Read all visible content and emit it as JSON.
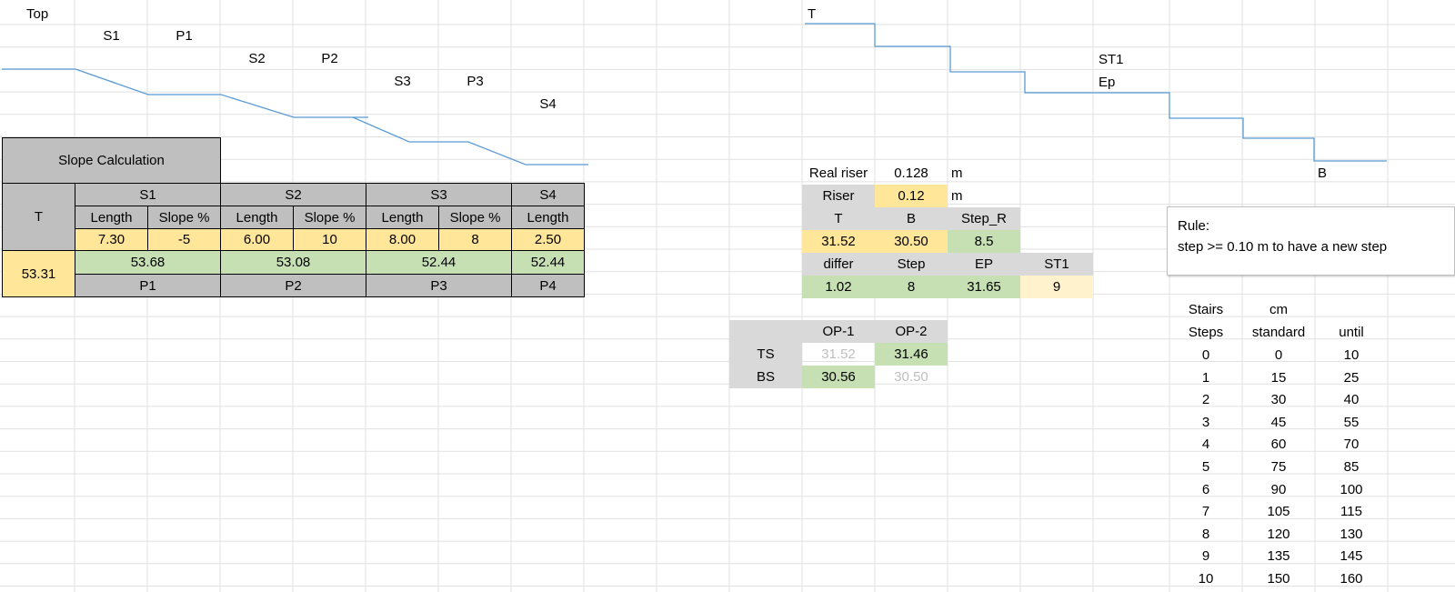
{
  "colors": {
    "gridline": "#e1e1e1",
    "header_gray": "#bfbfbf",
    "light_gray": "#d9d9d9",
    "input_yellow": "#ffe699",
    "light_yellow": "#fff2cc",
    "result_green": "#c6e0b4",
    "sketch_blue": "#5b9bd5"
  },
  "slope_sketch": {
    "top": "Top",
    "s1": "S1",
    "p1": "P1",
    "s2": "S2",
    "p2": "P2",
    "s3": "S3",
    "p3": "P3",
    "s4": "S4"
  },
  "slope_table": {
    "title": "Slope Calculation",
    "t_header": "T",
    "segments": [
      {
        "name": "S1",
        "length_label": "Length",
        "slope_label": "Slope %",
        "length": "7.30",
        "slope": "-5",
        "result": "53.68",
        "point": "P1"
      },
      {
        "name": "S2",
        "length_label": "Length",
        "slope_label": "Slope %",
        "length": "6.00",
        "slope": "10",
        "result": "53.08",
        "point": "P2"
      },
      {
        "name": "S3",
        "length_label": "Length",
        "slope_label": "Slope %",
        "length": "8.00",
        "slope": "8",
        "result": "52.44",
        "point": "P3"
      },
      {
        "name": "S4",
        "length_label": "Length",
        "length": "2.50",
        "result": "52.44",
        "point": "P4"
      }
    ],
    "t_value": "53.31"
  },
  "stair_sketch": {
    "t": "T",
    "st1": "ST1",
    "ep": "Ep",
    "b": "B"
  },
  "stair_calc": {
    "real_riser_label": "Real riser",
    "real_riser_value": "0.128",
    "real_riser_unit": "m",
    "riser_label": "Riser",
    "riser_value": "0.12",
    "riser_unit": "m",
    "h_t": "T",
    "h_b": "B",
    "h_step_r": "Step_R",
    "v_t": "31.52",
    "v_b": "30.50",
    "v_step_r": "8.5",
    "h_differ": "differ",
    "h_step": "Step",
    "h_ep": "EP",
    "h_st1": "ST1",
    "v_differ": "1.02",
    "v_step": "8",
    "v_ep": "31.65",
    "v_st1": "9"
  },
  "options": {
    "op1": "OP-1",
    "op2": "OP-2",
    "ts": "TS",
    "bs": "BS",
    "ts_op1": "31.52",
    "ts_op2": "31.46",
    "bs_op1": "30.56",
    "bs_op2": "30.50"
  },
  "rule": {
    "line1": "Rule:",
    "line2": "step >= 0.10 m to have a new step"
  },
  "stairs_table": {
    "h1": "Stairs",
    "h2": "cm",
    "c1": "Steps",
    "c2": "standard",
    "c3": "until",
    "rows": [
      [
        "0",
        "0",
        "10"
      ],
      [
        "1",
        "15",
        "25"
      ],
      [
        "2",
        "30",
        "40"
      ],
      [
        "3",
        "45",
        "55"
      ],
      [
        "4",
        "60",
        "70"
      ],
      [
        "5",
        "75",
        "85"
      ],
      [
        "6",
        "90",
        "100"
      ],
      [
        "7",
        "105",
        "115"
      ],
      [
        "8",
        "120",
        "130"
      ],
      [
        "9",
        "135",
        "145"
      ],
      [
        "10",
        "150",
        "160"
      ]
    ]
  }
}
